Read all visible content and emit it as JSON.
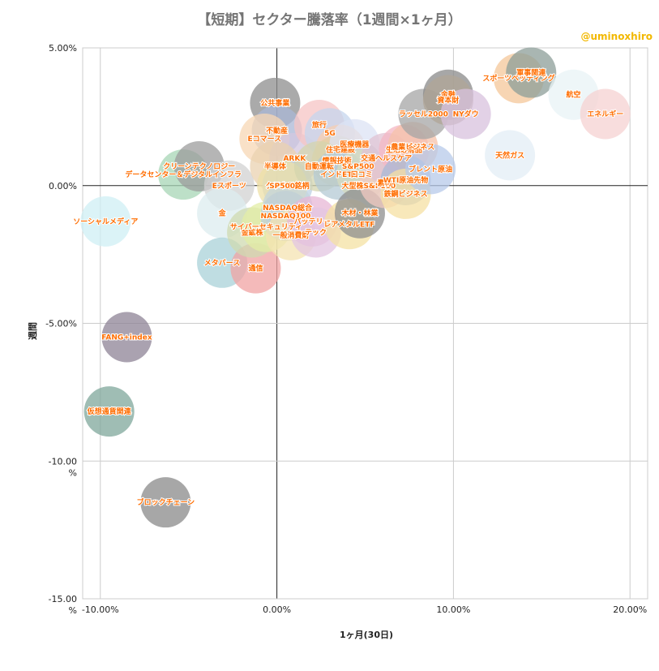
{
  "title": "【短期】セクター騰落率（1週間×1ヶ月）",
  "watermark": "@uminoxhiro",
  "chart_data": {
    "type": "scatter",
    "title": "【短期】セクター騰落率（1週間×1ヶ月）",
    "xlabel": "1ヶ月(30日)",
    "ylabel": "週間",
    "xlim": [
      -0.11,
      0.21
    ],
    "ylim": [
      -0.15,
      0.05
    ],
    "grid": true,
    "x_ticks": [
      "-10.00%",
      "0.00%",
      "10.00%",
      "20.00%"
    ],
    "y_ticks": [
      "5.00%",
      "0.00%",
      "-5.00%",
      "-10.00\n%",
      "-15.00\n%"
    ],
    "points": [
      {
        "name": "ソーシャルメディア",
        "x": -0.097,
        "y": -0.013,
        "color": "#cfeff4"
      },
      {
        "name": "FANG+index",
        "x": -0.085,
        "y": -0.055,
        "color": "#8d8395"
      },
      {
        "name": "仮想通貨関連",
        "x": -0.095,
        "y": -0.082,
        "color": "#7fa79b"
      },
      {
        "name": "ブロックチェーン",
        "x": -0.063,
        "y": -0.115,
        "color": "#8a8a8a"
      },
      {
        "name": "データセンター＆デジタルインフラ",
        "x": -0.053,
        "y": 0.004,
        "color": "#a7d6b6"
      },
      {
        "name": "クリーンテクノロジー",
        "x": -0.044,
        "y": 0.007,
        "color": "#9c9c9c"
      },
      {
        "name": "Eスポーツ",
        "x": -0.027,
        "y": 0.0,
        "color": "#d2d2d2"
      },
      {
        "name": "金",
        "x": -0.031,
        "y": -0.01,
        "color": "#dcecef"
      },
      {
        "name": "メタバース",
        "x": -0.031,
        "y": -0.028,
        "color": "#a9d1d8"
      },
      {
        "name": "通信",
        "x": -0.012,
        "y": -0.03,
        "color": "#f0a3a3"
      },
      {
        "name": "金鉱株",
        "x": -0.014,
        "y": -0.017,
        "color": "#cfd9b0"
      },
      {
        "name": "サイバーセキュリティ",
        "x": -0.006,
        "y": -0.015,
        "color": "#e3eea5"
      },
      {
        "name": "公共事業",
        "x": -0.001,
        "y": 0.03,
        "color": "#8d8d8d"
      },
      {
        "name": "不動産",
        "x": 0.0,
        "y": 0.02,
        "color": "#a9b7d6"
      },
      {
        "name": "Eコマース",
        "x": -0.007,
        "y": 0.017,
        "color": "#f7d7b4"
      },
      {
        "name": "ARKK",
        "x": 0.01,
        "y": 0.01,
        "color": "#d3c7e0"
      },
      {
        "name": "半導体",
        "x": -0.001,
        "y": 0.007,
        "color": "#e9d2b0"
      },
      {
        "name": "クラウド銘柄",
        "x": 0.006,
        "y": 0.0,
        "color": "#bcd0e4"
      },
      {
        "name": "SP500",
        "x": 0.003,
        "y": 0.0,
        "color": "#eee0a7"
      },
      {
        "name": "NASDAQ総合",
        "x": 0.006,
        "y": -0.008,
        "color": "#c4d6dc"
      },
      {
        "name": "NASDAQ100",
        "x": 0.005,
        "y": -0.011,
        "color": "#bfcfd6"
      },
      {
        "name": "一般消費財",
        "x": 0.008,
        "y": -0.018,
        "color": "#f4e3b2"
      },
      {
        "name": "バッテリー",
        "x": 0.02,
        "y": -0.013,
        "color": "#e7b7d5"
      },
      {
        "name": "テック",
        "x": 0.022,
        "y": -0.017,
        "color": "#e3c5e2"
      },
      {
        "name": "旅行",
        "x": 0.024,
        "y": 0.022,
        "color": "#f5c4c4"
      },
      {
        "name": "5G",
        "x": 0.03,
        "y": 0.019,
        "color": "#c5d6ee"
      },
      {
        "name": "住宅建設",
        "x": 0.036,
        "y": 0.013,
        "color": "#f7ceb1"
      },
      {
        "name": "情報技術",
        "x": 0.034,
        "y": 0.009,
        "color": "#e4cfa3"
      },
      {
        "name": "医療機器",
        "x": 0.044,
        "y": 0.015,
        "color": "#dce3f4"
      },
      {
        "name": "自動運転",
        "x": 0.024,
        "y": 0.007,
        "color": "#d4d4ad"
      },
      {
        "name": "S&P500",
        "x": 0.046,
        "y": 0.007,
        "color": "#c3ccd8"
      },
      {
        "name": "インドETF",
        "x": 0.035,
        "y": 0.004,
        "color": "#b4c9d4"
      },
      {
        "name": "口コミ",
        "x": 0.048,
        "y": 0.004,
        "color": "#d7dcbf"
      },
      {
        "name": "大型株S&P100",
        "x": 0.052,
        "y": 0.0,
        "color": "#cfd8c4"
      },
      {
        "name": "レアメタルETF",
        "x": 0.041,
        "y": -0.014,
        "color": "#f4e1a3"
      },
      {
        "name": "木材・林業",
        "x": 0.047,
        "y": -0.01,
        "color": "#8e8e8e"
      },
      {
        "name": "素材",
        "x": 0.061,
        "y": 0.001,
        "color": "#f2c9c2"
      },
      {
        "name": "交通ヘルスケア",
        "x": 0.062,
        "y": 0.01,
        "color": "#e0c3d3"
      },
      {
        "name": "生活必需品",
        "x": 0.072,
        "y": 0.013,
        "color": "#f4b7c4"
      },
      {
        "name": "農業ビジネス",
        "x": 0.077,
        "y": 0.014,
        "color": "#f5c1a9"
      },
      {
        "name": "WTI原油先物",
        "x": 0.073,
        "y": 0.002,
        "color": "#a8b8d6"
      },
      {
        "name": "鉄鋼ビジネス",
        "x": 0.073,
        "y": -0.003,
        "color": "#f5e0a3"
      },
      {
        "name": "ブレント原油",
        "x": 0.087,
        "y": 0.006,
        "color": "#b7c9ea"
      },
      {
        "name": "ラッセル2000",
        "x": 0.083,
        "y": 0.026,
        "color": "#a6a6a6"
      },
      {
        "name": "金融",
        "x": 0.097,
        "y": 0.033,
        "color": "#8a8a8a"
      },
      {
        "name": "資本財",
        "x": 0.097,
        "y": 0.031,
        "color": "#b0a597"
      },
      {
        "name": "NYダウ",
        "x": 0.107,
        "y": 0.026,
        "color": "#d8c1de"
      },
      {
        "name": "天然ガス",
        "x": 0.132,
        "y": 0.011,
        "color": "#e3eef6"
      },
      {
        "name": "スポーツベッティング",
        "x": 0.137,
        "y": 0.039,
        "color": "#f4c79a"
      },
      {
        "name": "軍事関連",
        "x": 0.144,
        "y": 0.041,
        "color": "#8c9d98"
      },
      {
        "name": "航空",
        "x": 0.168,
        "y": 0.033,
        "color": "#e8f3f5"
      },
      {
        "name": "エネルギー",
        "x": 0.186,
        "y": 0.026,
        "color": "#f5d2d2"
      }
    ]
  }
}
